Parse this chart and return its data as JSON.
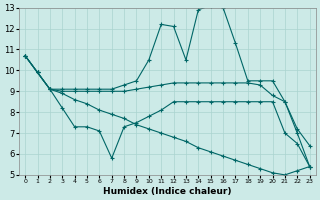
{
  "background_color": "#cceae7",
  "grid_color": "#aad4d0",
  "line_color": "#006666",
  "xlabel": "Humidex (Indice chaleur)",
  "xlim": [
    -0.5,
    23.5
  ],
  "ylim": [
    5,
    13
  ],
  "yticks": [
    5,
    6,
    7,
    8,
    9,
    10,
    11,
    12,
    13
  ],
  "xticks": [
    0,
    1,
    2,
    3,
    4,
    5,
    6,
    7,
    8,
    9,
    10,
    11,
    12,
    13,
    14,
    15,
    16,
    17,
    18,
    19,
    20,
    21,
    22,
    23
  ],
  "series": [
    {
      "x": [
        0,
        1,
        2,
        3,
        4,
        5,
        6,
        7,
        8,
        9,
        10,
        11,
        12,
        13,
        14,
        15,
        16,
        17,
        18,
        19,
        20,
        21,
        22,
        23
      ],
      "y": [
        10.7,
        9.9,
        9.1,
        9.1,
        9.1,
        9.1,
        9.1,
        9.1,
        9.3,
        9.5,
        10.5,
        12.2,
        12.1,
        10.5,
        12.9,
        13.1,
        13.0,
        11.3,
        9.5,
        9.5,
        9.5,
        8.5,
        7.0,
        5.4
      ]
    },
    {
      "x": [
        0,
        1,
        2,
        3,
        4,
        5,
        6,
        7,
        8,
        9,
        10,
        11,
        12,
        13,
        14,
        15,
        16,
        17,
        18,
        19,
        20,
        21,
        22,
        23
      ],
      "y": [
        10.7,
        9.9,
        9.1,
        9.0,
        9.0,
        9.0,
        9.0,
        9.0,
        9.0,
        9.1,
        9.2,
        9.3,
        9.4,
        9.4,
        9.4,
        9.4,
        9.4,
        9.4,
        9.4,
        9.3,
        8.8,
        8.5,
        7.2,
        6.4
      ]
    },
    {
      "x": [
        0,
        1,
        2,
        3,
        4,
        5,
        6,
        7,
        8,
        9,
        10,
        11,
        12,
        13,
        14,
        15,
        16,
        17,
        18,
        19,
        20,
        21,
        22,
        23
      ],
      "y": [
        10.7,
        9.9,
        9.1,
        8.2,
        7.3,
        7.3,
        7.1,
        5.8,
        7.3,
        7.5,
        7.8,
        8.1,
        8.5,
        8.5,
        8.5,
        8.5,
        8.5,
        8.5,
        8.5,
        8.5,
        8.5,
        7.0,
        6.5,
        5.4
      ]
    },
    {
      "x": [
        0,
        1,
        2,
        3,
        4,
        5,
        6,
        7,
        8,
        9,
        10,
        11,
        12,
        13,
        14,
        15,
        16,
        17,
        18,
        19,
        20,
        21,
        22,
        23
      ],
      "y": [
        10.7,
        9.9,
        9.1,
        8.9,
        8.6,
        8.4,
        8.1,
        7.9,
        7.7,
        7.4,
        7.2,
        7.0,
        6.8,
        6.6,
        6.3,
        6.1,
        5.9,
        5.7,
        5.5,
        5.3,
        5.1,
        5.0,
        5.2,
        5.4
      ]
    }
  ]
}
